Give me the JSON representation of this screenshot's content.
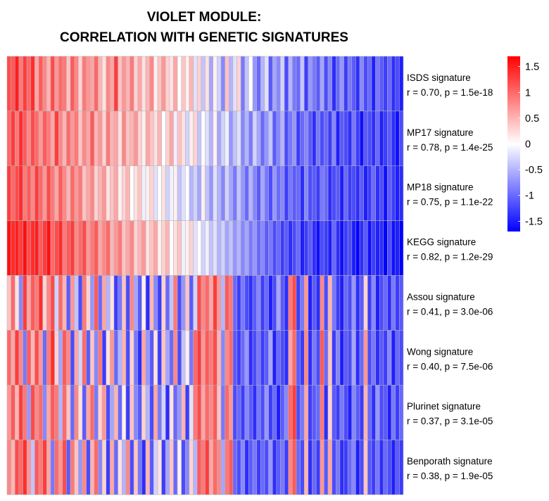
{
  "chart_data": {
    "type": "heatmap",
    "title": [
      "VIOLET MODULE:",
      "CORRELATION WITH GENETIC SIGNATURES"
    ],
    "rows": [
      {
        "name": "ISDS signature",
        "stat": "r = 0.70, p = 1.5e-18"
      },
      {
        "name": "MP17 signature",
        "stat": "r = 0.78, p = 1.4e-25"
      },
      {
        "name": "MP18 signature",
        "stat": "r = 0.75, p = 1.1e-22"
      },
      {
        "name": "KEGG signature",
        "stat": "r = 0.82, p = 1.2e-29"
      },
      {
        "name": "Assou signature",
        "stat": "r = 0.41, p = 3.0e-06"
      },
      {
        "name": "Wong signature",
        "stat": "r = 0.40, p = 7.5e-06"
      },
      {
        "name": "Plurinet signature",
        "stat": "r = 0.37, p = 3.1e-05"
      },
      {
        "name": "Benporath signature",
        "stat": "r = 0.38, p = 1.9e-05"
      }
    ],
    "n_columns": 100,
    "color_scale": {
      "min": -1.7,
      "max": 1.7,
      "low_color": "#0000ff",
      "mid_color": "#ffffff",
      "high_color": "#ff0000",
      "ticks": [
        "1.5",
        "1",
        "0.5",
        "0",
        "-0.5",
        "-1",
        "-1.5"
      ],
      "tick_values": [
        1.5,
        1,
        0.5,
        0,
        -0.5,
        -1,
        -1.5
      ]
    },
    "values": [
      [
        1.2,
        1.1,
        1.5,
        0.9,
        1.3,
        1.0,
        1.4,
        0.6,
        1.1,
        0.8,
        0.5,
        1.2,
        0.7,
        1.0,
        0.9,
        0.4,
        1.1,
        0.8,
        0.3,
        0.9,
        0.7,
        0.6,
        1.0,
        0.5,
        0.2,
        0.8,
        0.6,
        1.3,
        0.4,
        0.7,
        0.5,
        0.9,
        0.3,
        0.6,
        0.2,
        0.5,
        0.8,
        0.1,
        0.4,
        0.7,
        0.3,
        0.2,
        0.6,
        0.0,
        0.4,
        0.1,
        0.5,
        -0.2,
        0.3,
        -0.4,
        0.2,
        -0.6,
        0.1,
        -0.3,
        -0.8,
        0.4,
        -0.5,
        -0.2,
        0.3,
        -0.9,
        -0.4,
        0.0,
        -0.7,
        -1.0,
        -0.5,
        -0.2,
        -1.1,
        -0.6,
        -0.8,
        -0.3,
        -1.2,
        -0.5,
        -0.9,
        -1.0,
        -0.4,
        -1.3,
        -0.7,
        -0.9,
        -1.1,
        -0.6,
        -1.2,
        -0.8,
        -1.4,
        -1.0,
        -0.7,
        -1.3,
        -0.9,
        -1.1,
        -1.4,
        -0.8,
        -1.2,
        -1.0,
        -1.5,
        -0.9,
        -1.1,
        -1.3,
        -1.0,
        -1.4,
        -1.2,
        -1.5
      ],
      [
        1.0,
        1.3,
        0.9,
        1.4,
        1.1,
        0.8,
        1.2,
        1.0,
        0.7,
        1.1,
        0.9,
        0.6,
        1.3,
        0.8,
        0.5,
        1.0,
        0.7,
        0.9,
        0.4,
        0.8,
        0.6,
        1.1,
        0.5,
        0.7,
        0.3,
        0.9,
        0.5,
        0.6,
        0.2,
        0.8,
        0.4,
        0.5,
        0.7,
        0.3,
        0.1,
        0.6,
        0.4,
        0.2,
        0.5,
        0.0,
        0.3,
        0.6,
        -0.1,
        0.4,
        0.2,
        -0.3,
        0.1,
        0.3,
        -0.4,
        0.0,
        -0.2,
        -0.5,
        0.1,
        -0.6,
        -0.3,
        -0.1,
        -0.7,
        -0.4,
        -0.2,
        -0.8,
        -0.5,
        -0.9,
        -0.3,
        -0.6,
        -1.0,
        -0.7,
        -0.4,
        -1.1,
        -0.8,
        -0.5,
        -1.2,
        -0.9,
        -0.7,
        -1.3,
        -1.0,
        -0.8,
        -1.1,
        -1.4,
        -0.9,
        -1.2,
        -1.0,
        -1.3,
        -0.8,
        -1.5,
        -1.1,
        -1.2,
        -1.4,
        -0.9,
        -1.3,
        -1.6,
        -1.1,
        -1.2,
        -1.4,
        -1.0,
        -1.5,
        -1.3,
        -1.1,
        -1.4,
        -1.6,
        -1.2
      ],
      [
        1.3,
        1.0,
        1.2,
        1.4,
        0.9,
        1.1,
        0.8,
        1.3,
        1.0,
        0.7,
        1.2,
        0.9,
        0.6,
        1.1,
        0.8,
        0.5,
        1.0,
        0.7,
        0.9,
        0.4,
        0.6,
        0.8,
        0.3,
        0.5,
        0.7,
        0.2,
        0.4,
        0.6,
        0.1,
        0.3,
        0.5,
        0.0,
        0.2,
        0.4,
        -0.1,
        0.1,
        0.3,
        -0.2,
        0.0,
        0.2,
        -0.3,
        -0.1,
        0.1,
        -0.4,
        -0.2,
        0.0,
        -0.5,
        -0.3,
        -0.6,
        0.1,
        -0.4,
        -0.7,
        -0.2,
        -0.5,
        -0.8,
        -0.3,
        -0.6,
        -0.9,
        -0.4,
        -0.7,
        -1.0,
        -0.5,
        -0.8,
        -1.1,
        -0.6,
        -0.9,
        -1.2,
        -0.7,
        -1.0,
        -0.8,
        -1.3,
        -0.9,
        -1.1,
        -1.0,
        -1.4,
        -0.8,
        -1.2,
        -1.1,
        -1.3,
        -0.9,
        -1.0,
        -1.4,
        -1.2,
        -1.1,
        -1.5,
        -1.0,
        -1.3,
        -1.2,
        -1.4,
        -1.1,
        -1.5,
        -1.3,
        -1.0,
        -1.4,
        -1.2,
        -1.6,
        -1.1,
        -1.3,
        -1.5,
        -1.4
      ],
      [
        1.6,
        1.4,
        1.5,
        1.3,
        1.6,
        1.2,
        1.4,
        1.5,
        1.1,
        1.3,
        1.6,
        1.0,
        1.2,
        1.4,
        0.9,
        1.1,
        1.3,
        0.8,
        1.0,
        1.2,
        0.7,
        0.9,
        1.1,
        0.6,
        0.8,
        1.0,
        0.5,
        0.7,
        0.9,
        0.4,
        0.6,
        0.8,
        0.3,
        0.5,
        0.7,
        0.2,
        0.4,
        0.6,
        0.1,
        0.3,
        0.5,
        0.0,
        0.2,
        0.4,
        -0.1,
        0.1,
        0.3,
        -0.2,
        0.0,
        -0.3,
        -0.1,
        -0.4,
        -0.2,
        -0.5,
        -0.3,
        -0.6,
        -0.4,
        -0.7,
        -0.5,
        -0.8,
        -0.6,
        -0.9,
        -0.7,
        -1.0,
        -0.8,
        -1.1,
        -0.9,
        -1.2,
        -1.0,
        -1.3,
        -1.1,
        -1.4,
        -1.2,
        -1.0,
        -1.5,
        -1.3,
        -1.1,
        -1.4,
        -1.6,
        -1.2,
        -1.3,
        -1.5,
        -1.0,
        -1.4,
        -1.6,
        -1.3,
        -1.2,
        -1.5,
        -1.7,
        -1.4,
        -1.1,
        -1.6,
        -1.3,
        -1.5,
        -1.4,
        -1.7,
        -1.2,
        -1.6,
        -1.5,
        -1.7
      ],
      [
        0.4,
        1.0,
        0.2,
        -0.8,
        1.3,
        0.6,
        1.1,
        0.9,
        1.4,
        0.3,
        0.8,
        1.2,
        -0.3,
        1.0,
        0.5,
        -1.1,
        0.7,
        -0.4,
        -1.2,
        0.9,
        0.3,
        -0.7,
        1.1,
        -1.0,
        0.6,
        -0.5,
        0.2,
        -1.3,
        -0.9,
        0.4,
        -1.2,
        0.8,
        -0.6,
        -1.1,
        0.1,
        -1.4,
        0.5,
        -0.8,
        -1.3,
        0.3,
        -1.0,
        -0.4,
        0.9,
        -1.2,
        -0.7,
        0.4,
        -1.1,
        -0.3,
        1.2,
        0.8,
        1.0,
        0.6,
        1.3,
        0.7,
        -0.5,
        1.1,
        0.9,
        -1.0,
        -1.3,
        -0.9,
        -1.2,
        -1.4,
        -1.1,
        -0.8,
        -1.3,
        -1.0,
        -1.5,
        -1.2,
        -0.6,
        -1.1,
        -1.4,
        0.9,
        1.2,
        -1.3,
        -0.9,
        0.7,
        -1.5,
        -1.1,
        -1.4,
        0.8,
        -1.2,
        0.5,
        -0.9,
        -1.3,
        -1.5,
        -1.0,
        -1.2,
        -0.7,
        -1.4,
        -1.1,
        0.3,
        -1.3,
        -0.8,
        -1.5,
        -1.2,
        -1.0,
        -1.4,
        -0.9,
        -1.3,
        -1.1
      ],
      [
        1.0,
        0.6,
        1.3,
        0.8,
        -0.9,
        1.1,
        0.5,
        1.2,
        0.7,
        -1.0,
        0.9,
        1.4,
        0.3,
        -0.6,
        1.1,
        0.8,
        -1.2,
        0.6,
        -0.3,
        1.0,
        -1.1,
        0.4,
        -0.8,
        0.9,
        -1.3,
        0.2,
        0.7,
        -1.0,
        -0.5,
        0.5,
        -1.2,
        0.3,
        -0.9,
        -1.4,
        0.6,
        -0.7,
        -1.1,
        0.2,
        -1.3,
        0.4,
        -0.6,
        -1.0,
        0.8,
        -1.2,
        -0.4,
        0.1,
        -0.9,
        1.0,
        1.3,
        0.7,
        1.1,
        0.9,
        1.2,
        0.5,
        -0.8,
        0.8,
        1.0,
        -1.1,
        -1.3,
        -1.0,
        -0.7,
        -1.4,
        -1.2,
        -0.9,
        -1.3,
        -1.1,
        -0.6,
        -1.5,
        -1.0,
        -1.2,
        -1.4,
        0.6,
        1.0,
        -1.1,
        -1.3,
        0.8,
        -1.4,
        -0.9,
        -1.2,
        1.1,
        -1.0,
        0.4,
        -1.3,
        -0.8,
        -1.5,
        -1.1,
        -1.2,
        -0.6,
        -1.4,
        -1.0,
        0.7,
        -1.2,
        -0.9,
        -1.4,
        -1.1,
        -1.3,
        -0.8,
        -1.5,
        -1.0,
        -1.2
      ],
      [
        0.7,
        1.1,
        0.5,
        1.3,
        0.9,
        -0.7,
        1.2,
        0.8,
        1.0,
        -0.8,
        0.6,
        1.1,
        0.9,
        -0.5,
        1.0,
        0.4,
        -1.0,
        0.8,
        0.2,
        -1.1,
        0.6,
        1.0,
        -0.9,
        0.3,
        0.7,
        -1.2,
        -0.6,
        0.5,
        -1.0,
        0.1,
        -1.3,
        0.4,
        -0.8,
        -1.1,
        0.3,
        -0.5,
        -1.2,
        0.6,
        -0.9,
        -0.3,
        -1.4,
        0.2,
        -1.0,
        -0.7,
        0.5,
        -1.3,
        -0.2,
        0.9,
        1.2,
        0.6,
        1.0,
        0.8,
        1.1,
        0.4,
        -0.9,
        1.0,
        0.7,
        -1.2,
        -1.0,
        -1.3,
        -0.8,
        -1.1,
        -1.4,
        -0.9,
        -1.2,
        -0.7,
        -1.3,
        -1.0,
        -1.5,
        -1.1,
        -0.8,
        1.0,
        1.3,
        -1.2,
        -0.9,
        0.6,
        -1.3,
        -1.1,
        -1.0,
        0.9,
        -1.4,
        0.3,
        -1.1,
        -1.3,
        -0.9,
        -1.2,
        -1.5,
        -0.8,
        -1.1,
        -1.3,
        0.5,
        -1.0,
        -1.4,
        -0.7,
        -1.2,
        -1.1,
        -1.5,
        -0.9,
        -1.3,
        -1.0
      ],
      [
        0.8,
        0.5,
        1.2,
        1.0,
        1.4,
        0.7,
        -0.4,
        1.1,
        0.9,
        1.3,
        0.6,
        -0.9,
        1.0,
        0.7,
        1.2,
        -1.1,
        0.9,
        0.4,
        -0.7,
        0.8,
        -1.2,
        0.5,
        1.0,
        -0.8,
        0.3,
        -1.3,
        0.6,
        -1.0,
        0.2,
        -0.5,
        0.8,
        -1.2,
        0.4,
        -0.9,
        -1.4,
        0.5,
        -1.1,
        -0.3,
        0.2,
        -1.3,
        -0.6,
        0.4,
        -1.0,
        0.1,
        -1.2,
        -0.8,
        0.3,
        -0.5,
        1.1,
        0.9,
        1.3,
        0.6,
        1.0,
        0.8,
        -0.6,
        0.9,
        1.1,
        -1.0,
        -1.2,
        -0.8,
        -1.4,
        -1.1,
        -0.9,
        -1.3,
        -1.0,
        -1.2,
        -0.7,
        -1.4,
        -1.1,
        -0.9,
        -1.3,
        0.8,
        1.1,
        -1.0,
        -1.2,
        0.5,
        -1.4,
        -1.0,
        -1.3,
        0.7,
        -1.1,
        0.6,
        -1.2,
        -0.9,
        -1.4,
        -1.3,
        -1.0,
        -0.8,
        -1.5,
        -1.2,
        0.4,
        -1.1,
        -1.3,
        -0.9,
        -1.4,
        -1.0,
        -1.2,
        -1.5,
        -1.1,
        -1.3
      ]
    ]
  }
}
